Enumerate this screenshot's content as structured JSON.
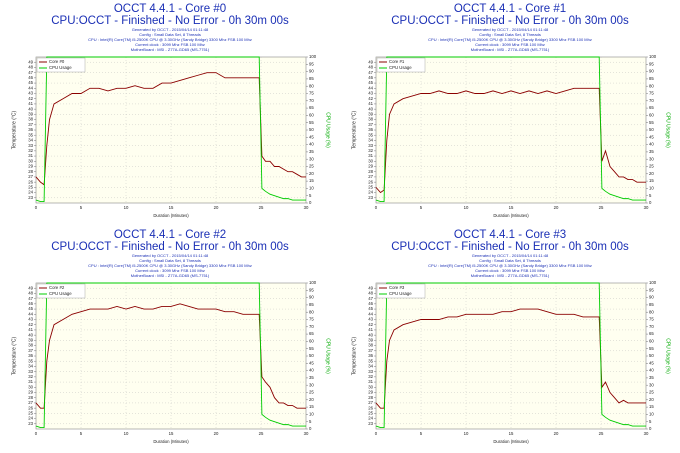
{
  "chart_data": [
    {
      "type": "line",
      "title": "OCCT 4.4.1 - Core #0",
      "subtitle": "CPU:OCCT - Finished - No Error - 0h 30m 00s",
      "info": [
        "Generated by OCCT - 2015/04/14 01:11:48",
        "Config : Small Data Set, 8 Threads",
        "CPU : Intel(R) Core(TM) i5-2500K CPU @ 3.30GHz (Sandy Bridge) 3300 Mhz FSB 100 Mhz",
        "Current clock : 3099 Mhz FSB 100 Mhz",
        "MotherBoard : MSI - Z77A-GD65 (MS-7751)"
      ],
      "xlabel": "Duration (Minutes)",
      "ylabel": "Temperature (°C)",
      "y2label": "CPU Usage (%)",
      "grid": true,
      "legend": "upper left",
      "xlim": [
        0,
        30
      ],
      "xticks": [
        0,
        5,
        10,
        15,
        20,
        25,
        30
      ],
      "ylim": [
        22,
        50
      ],
      "yticks": [
        23,
        24,
        25,
        26,
        27,
        28,
        29,
        30,
        31,
        32,
        33,
        34,
        35,
        36,
        37,
        38,
        39,
        40,
        41,
        42,
        43,
        44,
        45,
        46,
        47,
        48,
        49
      ],
      "y2lim": [
        0,
        100
      ],
      "y2ticks": [
        0,
        5,
        10,
        15,
        20,
        25,
        30,
        35,
        40,
        45,
        50,
        55,
        60,
        65,
        70,
        75,
        80,
        85,
        90,
        95,
        100
      ],
      "x": [
        0,
        0.5,
        0.9,
        1.2,
        1.5,
        2,
        3,
        4,
        5,
        6,
        7,
        8,
        9,
        10,
        11,
        12,
        13,
        14,
        15,
        16,
        17,
        18,
        19,
        20,
        21,
        22,
        23,
        24,
        24.8,
        25.1,
        25.5,
        26,
        26.5,
        27,
        27.5,
        28,
        28.5,
        29,
        29.5,
        30
      ],
      "series": [
        {
          "name": "Core #0",
          "color": "#8b0000",
          "values": [
            27,
            26,
            25.5,
            33,
            38,
            41,
            42,
            43,
            43,
            44,
            44,
            43.5,
            44,
            44,
            44.5,
            44,
            44,
            45,
            45,
            45.5,
            46,
            46.5,
            47,
            47,
            46,
            46,
            46,
            46,
            46,
            31,
            30,
            30,
            29,
            29,
            28.5,
            28,
            28,
            27.5,
            27,
            27
          ]
        },
        {
          "name": "CPU Usage",
          "color": "#00cc00",
          "axis": "y2",
          "values": [
            2,
            1,
            1,
            100,
            100,
            100,
            100,
            100,
            100,
            100,
            100,
            100,
            100,
            100,
            100,
            100,
            100,
            100,
            100,
            100,
            100,
            100,
            100,
            100,
            100,
            100,
            100,
            100,
            100,
            10,
            8,
            6,
            5,
            4,
            3,
            3,
            2,
            2,
            2,
            2
          ]
        }
      ]
    },
    {
      "type": "line",
      "title": "OCCT 4.4.1 - Core #1",
      "subtitle": "CPU:OCCT - Finished - No Error - 0h 30m 00s",
      "info": [
        "Generated by OCCT - 2015/04/14 01:11:48",
        "Config : Small Data Set, 8 Threads",
        "CPU : Intel(R) Core(TM) i5-2500K CPU @ 3.30GHz (Sandy Bridge) 3300 Mhz FSB 100 Mhz",
        "Current clock : 3099 Mhz FSB 100 Mhz",
        "MotherBoard : MSI - Z77A-GD65 (MS-7751)"
      ],
      "xlabel": "Duration (Minutes)",
      "ylabel": "Temperature (°C)",
      "y2label": "CPU Usage (%)",
      "grid": true,
      "legend": "upper left",
      "xlim": [
        0,
        30
      ],
      "xticks": [
        0,
        5,
        10,
        15,
        20,
        25,
        30
      ],
      "ylim": [
        22,
        50
      ],
      "yticks": [
        23,
        24,
        25,
        26,
        27,
        28,
        29,
        30,
        31,
        32,
        33,
        34,
        35,
        36,
        37,
        38,
        39,
        40,
        41,
        42,
        43,
        44,
        45,
        46,
        47,
        48,
        49
      ],
      "y2lim": [
        0,
        100
      ],
      "y2ticks": [
        0,
        5,
        10,
        15,
        20,
        25,
        30,
        35,
        40,
        45,
        50,
        55,
        60,
        65,
        70,
        75,
        80,
        85,
        90,
        95,
        100
      ],
      "x": [
        0,
        0.5,
        0.9,
        1.2,
        1.5,
        2,
        3,
        4,
        5,
        6,
        7,
        8,
        9,
        10,
        11,
        12,
        13,
        14,
        15,
        16,
        17,
        18,
        19,
        20,
        21,
        22,
        23,
        24,
        24.8,
        25.1,
        25.5,
        26,
        26.5,
        27,
        27.5,
        28,
        28.5,
        29,
        29.5,
        30
      ],
      "series": [
        {
          "name": "Core #1",
          "color": "#8b0000",
          "values": [
            25,
            24,
            24.5,
            34,
            39,
            41,
            42,
            42.5,
            43,
            43,
            43.5,
            43,
            43,
            43.5,
            43,
            43,
            43.5,
            43,
            43.5,
            43,
            43.5,
            43,
            43.5,
            43,
            43.5,
            44,
            44,
            44,
            44,
            30,
            32,
            29,
            28,
            27,
            27,
            26.5,
            26.5,
            26,
            26,
            26
          ]
        },
        {
          "name": "CPU Usage",
          "color": "#00cc00",
          "axis": "y2",
          "values": [
            2,
            1,
            1,
            100,
            100,
            100,
            100,
            100,
            100,
            100,
            100,
            100,
            100,
            100,
            100,
            100,
            100,
            100,
            100,
            100,
            100,
            100,
            100,
            100,
            100,
            100,
            100,
            100,
            100,
            10,
            8,
            6,
            5,
            4,
            3,
            3,
            2,
            2,
            2,
            2
          ]
        }
      ]
    },
    {
      "type": "line",
      "title": "OCCT 4.4.1 - Core #2",
      "subtitle": "CPU:OCCT - Finished - No Error - 0h 30m 00s",
      "info": [
        "Generated by OCCT - 2015/04/14 01:11:48",
        "Config : Small Data Set, 8 Threads",
        "CPU : Intel(R) Core(TM) i5-2500K CPU @ 3.30GHz (Sandy Bridge) 3300 Mhz FSB 100 Mhz",
        "Current clock : 3099 Mhz FSB 100 Mhz",
        "MotherBoard : MSI - Z77A-GD65 (MS-7751)"
      ],
      "xlabel": "Duration (Minutes)",
      "ylabel": "Temperature (°C)",
      "y2label": "CPU Usage (%)",
      "grid": true,
      "legend": "upper left",
      "xlim": [
        0,
        30
      ],
      "xticks": [
        0,
        5,
        10,
        15,
        20,
        25,
        30
      ],
      "ylim": [
        22,
        50
      ],
      "yticks": [
        23,
        24,
        25,
        26,
        27,
        28,
        29,
        30,
        31,
        32,
        33,
        34,
        35,
        36,
        37,
        38,
        39,
        40,
        41,
        42,
        43,
        44,
        45,
        46,
        47,
        48,
        49
      ],
      "y2lim": [
        0,
        100
      ],
      "y2ticks": [
        0,
        5,
        10,
        15,
        20,
        25,
        30,
        35,
        40,
        45,
        50,
        55,
        60,
        65,
        70,
        75,
        80,
        85,
        90,
        95,
        100
      ],
      "x": [
        0,
        0.5,
        0.9,
        1.2,
        1.5,
        2,
        3,
        4,
        5,
        6,
        7,
        8,
        9,
        10,
        11,
        12,
        13,
        14,
        15,
        16,
        17,
        18,
        19,
        20,
        21,
        22,
        23,
        24,
        24.8,
        25.1,
        25.5,
        26,
        26.5,
        27,
        27.5,
        28,
        28.5,
        29,
        29.5,
        30
      ],
      "series": [
        {
          "name": "Core #2",
          "color": "#8b0000",
          "values": [
            27,
            26,
            26,
            35,
            39,
            42,
            43,
            44,
            44.5,
            45,
            45,
            45,
            45.5,
            45,
            45.5,
            45,
            45,
            45.5,
            45.5,
            46,
            45.5,
            45,
            45,
            45,
            44.5,
            44.5,
            44,
            44,
            44,
            32,
            31,
            30,
            28,
            27,
            27,
            26.5,
            26.5,
            26,
            26,
            26
          ]
        },
        {
          "name": "CPU Usage",
          "color": "#00cc00",
          "axis": "y2",
          "values": [
            2,
            1,
            1,
            100,
            100,
            100,
            100,
            100,
            100,
            100,
            100,
            100,
            100,
            100,
            100,
            100,
            100,
            100,
            100,
            100,
            100,
            100,
            100,
            100,
            100,
            100,
            100,
            100,
            100,
            10,
            8,
            6,
            5,
            4,
            3,
            3,
            2,
            2,
            2,
            2
          ]
        }
      ]
    },
    {
      "type": "line",
      "title": "OCCT 4.4.1 - Core #3",
      "subtitle": "CPU:OCCT - Finished - No Error - 0h 30m 00s",
      "info": [
        "Generated by OCCT - 2015/04/14 01:11:48",
        "Config : Small Data Set, 8 Threads",
        "CPU : Intel(R) Core(TM) i5-2500K CPU @ 3.30GHz (Sandy Bridge) 3300 Mhz FSB 100 Mhz",
        "Current clock : 3099 Mhz FSB 100 Mhz",
        "MotherBoard : MSI - Z77A-GD65 (MS-7751)"
      ],
      "xlabel": "Duration (Minutes)",
      "ylabel": "Temperature (°C)",
      "y2label": "CPU Usage (%)",
      "grid": true,
      "legend": "upper left",
      "xlim": [
        0,
        30
      ],
      "xticks": [
        0,
        5,
        10,
        15,
        20,
        25,
        30
      ],
      "ylim": [
        22,
        50
      ],
      "yticks": [
        23,
        24,
        25,
        26,
        27,
        28,
        29,
        30,
        31,
        32,
        33,
        34,
        35,
        36,
        37,
        38,
        39,
        40,
        41,
        42,
        43,
        44,
        45,
        46,
        47,
        48,
        49
      ],
      "y2lim": [
        0,
        100
      ],
      "y2ticks": [
        0,
        5,
        10,
        15,
        20,
        25,
        30,
        35,
        40,
        45,
        50,
        55,
        60,
        65,
        70,
        75,
        80,
        85,
        90,
        95,
        100
      ],
      "x": [
        0,
        0.5,
        0.9,
        1.2,
        1.5,
        2,
        3,
        4,
        5,
        6,
        7,
        8,
        9,
        10,
        11,
        12,
        13,
        14,
        15,
        16,
        17,
        18,
        19,
        20,
        21,
        22,
        23,
        24,
        24.8,
        25.1,
        25.5,
        26,
        26.5,
        27,
        27.5,
        28,
        28.5,
        29,
        29.5,
        30
      ],
      "series": [
        {
          "name": "Core #3",
          "color": "#8b0000",
          "values": [
            27,
            26,
            26,
            35,
            39,
            41,
            42,
            42.5,
            43,
            43,
            43,
            43.5,
            43.5,
            44,
            44,
            44,
            44,
            44.5,
            44.5,
            45,
            45,
            45,
            44.5,
            44,
            44,
            44,
            43.5,
            43.5,
            43.5,
            30,
            31,
            29,
            28,
            27,
            27.5,
            27,
            27,
            27,
            27,
            27
          ]
        },
        {
          "name": "CPU Usage",
          "color": "#00cc00",
          "axis": "y2",
          "values": [
            2,
            1,
            1,
            100,
            100,
            100,
            100,
            100,
            100,
            100,
            100,
            100,
            100,
            100,
            100,
            100,
            100,
            100,
            100,
            100,
            100,
            100,
            100,
            100,
            100,
            100,
            100,
            100,
            100,
            10,
            8,
            6,
            5,
            4,
            3,
            3,
            2,
            2,
            2,
            2
          ]
        }
      ]
    }
  ]
}
